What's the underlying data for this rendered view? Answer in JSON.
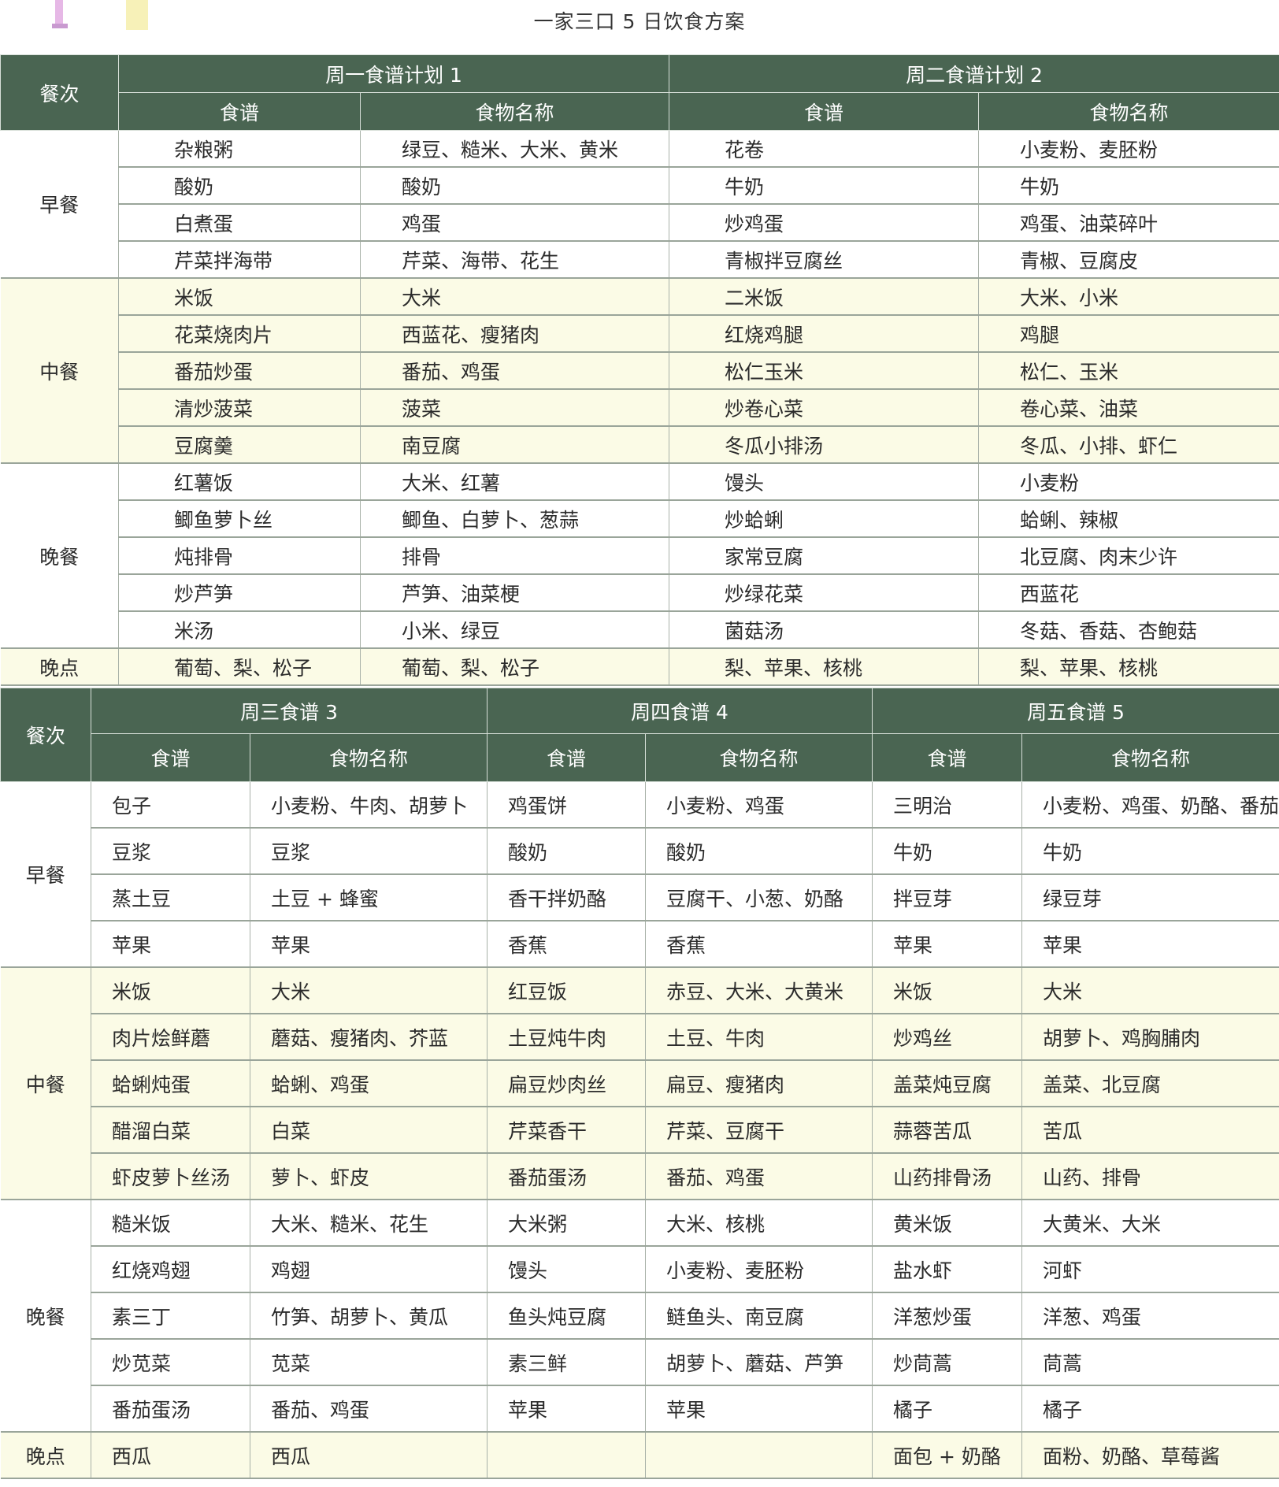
{
  "title": "一家三口 5 日饮食方案",
  "colors": {
    "header_bg": "#4a6552",
    "highlight_row_bg": "#fbfbe6",
    "grid_line": "#9aa59a"
  },
  "table1": {
    "meal_header": "餐次",
    "days": [
      {
        "title": "周一食谱计划 1",
        "col_recipe": "食谱",
        "col_food": "食物名称"
      },
      {
        "title": "周二食谱计划 2",
        "col_recipe": "食谱",
        "col_food": "食物名称"
      }
    ],
    "meals": [
      {
        "name": "早餐",
        "rows": [
          [
            "杂粮粥",
            "绿豆、糙米、大米、黄米",
            "花卷",
            "小麦粉、麦胚粉"
          ],
          [
            "酸奶",
            "酸奶",
            "牛奶",
            "牛奶"
          ],
          [
            "白煮蛋",
            "鸡蛋",
            "炒鸡蛋",
            "鸡蛋、油菜碎叶"
          ],
          [
            "芹菜拌海带",
            "芹菜、海带、花生",
            "青椒拌豆腐丝",
            "青椒、豆腐皮"
          ]
        ]
      },
      {
        "name": "中餐",
        "rows": [
          [
            "米饭",
            "大米",
            "二米饭",
            "大米、小米"
          ],
          [
            "花菜烧肉片",
            "西蓝花、瘦猪肉",
            "红烧鸡腿",
            "鸡腿"
          ],
          [
            "番茄炒蛋",
            "番茄、鸡蛋",
            "松仁玉米",
            "松仁、玉米"
          ],
          [
            "清炒菠菜",
            "菠菜",
            "炒卷心菜",
            "卷心菜、油菜"
          ],
          [
            "豆腐羹",
            "南豆腐",
            "冬瓜小排汤",
            "冬瓜、小排、虾仁"
          ]
        ]
      },
      {
        "name": "晚餐",
        "rows": [
          [
            "红薯饭",
            "大米、红薯",
            "馒头",
            "小麦粉"
          ],
          [
            "鲫鱼萝卜丝",
            "鲫鱼、白萝卜、葱蒜",
            "炒蛤蜊",
            "蛤蜊、辣椒"
          ],
          [
            "炖排骨",
            "排骨",
            "家常豆腐",
            "北豆腐、肉末少许"
          ],
          [
            "炒芦笋",
            "芦笋、油菜梗",
            "炒绿花菜",
            "西蓝花"
          ],
          [
            "米汤",
            "小米、绿豆",
            "菌菇汤",
            "冬菇、香菇、杏鲍菇"
          ]
        ]
      },
      {
        "name": "晚点",
        "rows": [
          [
            "葡萄、梨、松子",
            "葡萄、梨、松子",
            "梨、苹果、核桃",
            "梨、苹果、核桃"
          ]
        ]
      }
    ]
  },
  "table2": {
    "meal_header": "餐次",
    "days": [
      {
        "title": "周三食谱 3",
        "col_recipe": "食谱",
        "col_food": "食物名称"
      },
      {
        "title": "周四食谱 4",
        "col_recipe": "食谱",
        "col_food": "食物名称"
      },
      {
        "title": "周五食谱 5",
        "col_recipe": "食谱",
        "col_food": "食物名称"
      }
    ],
    "meals": [
      {
        "name": "早餐",
        "rows": [
          [
            "包子",
            "小麦粉、牛肉、胡萝卜",
            "鸡蛋饼",
            "小麦粉、鸡蛋",
            "三明治",
            "小麦粉、鸡蛋、奶酪、番茄"
          ],
          [
            "豆浆",
            "豆浆",
            "酸奶",
            "酸奶",
            "牛奶",
            "牛奶"
          ],
          [
            "蒸土豆",
            "土豆 + 蜂蜜",
            "香干拌奶酪",
            "豆腐干、小葱、奶酪",
            "拌豆芽",
            "绿豆芽"
          ],
          [
            "苹果",
            "苹果",
            "香蕉",
            "香蕉",
            "苹果",
            "苹果"
          ]
        ]
      },
      {
        "name": "中餐",
        "rows": [
          [
            "米饭",
            "大米",
            "红豆饭",
            "赤豆、大米、大黄米",
            "米饭",
            "大米"
          ],
          [
            "肉片烩鲜蘑",
            "蘑菇、瘦猪肉、芥蓝",
            "土豆炖牛肉",
            "土豆、牛肉",
            "炒鸡丝",
            "胡萝卜、鸡胸脯肉"
          ],
          [
            "蛤蜊炖蛋",
            "蛤蜊、鸡蛋",
            "扁豆炒肉丝",
            "扁豆、瘦猪肉",
            "盖菜炖豆腐",
            "盖菜、北豆腐"
          ],
          [
            "醋溜白菜",
            "白菜",
            "芹菜香干",
            "芹菜、豆腐干",
            "蒜蓉苦瓜",
            "苦瓜"
          ],
          [
            "虾皮萝卜丝汤",
            "萝卜、虾皮",
            "番茄蛋汤",
            "番茄、鸡蛋",
            "山药排骨汤",
            "山药、排骨"
          ]
        ]
      },
      {
        "name": "晚餐",
        "rows": [
          [
            "糙米饭",
            "大米、糙米、花生",
            "大米粥",
            "大米、核桃",
            "黄米饭",
            "大黄米、大米"
          ],
          [
            "红烧鸡翅",
            "鸡翅",
            "馒头",
            "小麦粉、麦胚粉",
            "盐水虾",
            "河虾"
          ],
          [
            "素三丁",
            "竹笋、胡萝卜、黄瓜",
            "鱼头炖豆腐",
            "鲢鱼头、南豆腐",
            "洋葱炒蛋",
            "洋葱、鸡蛋"
          ],
          [
            "炒苋菜",
            "苋菜",
            "素三鲜",
            "胡萝卜、蘑菇、芦笋",
            "炒茼蒿",
            "茼蒿"
          ],
          [
            "番茄蛋汤",
            "番茄、鸡蛋",
            "苹果",
            "苹果",
            "橘子",
            "橘子"
          ]
        ]
      },
      {
        "name": "晚点",
        "rows": [
          [
            "西瓜",
            "西瓜",
            "",
            "",
            "面包 + 奶酪",
            "面粉、奶酪、草莓酱"
          ]
        ]
      }
    ]
  }
}
